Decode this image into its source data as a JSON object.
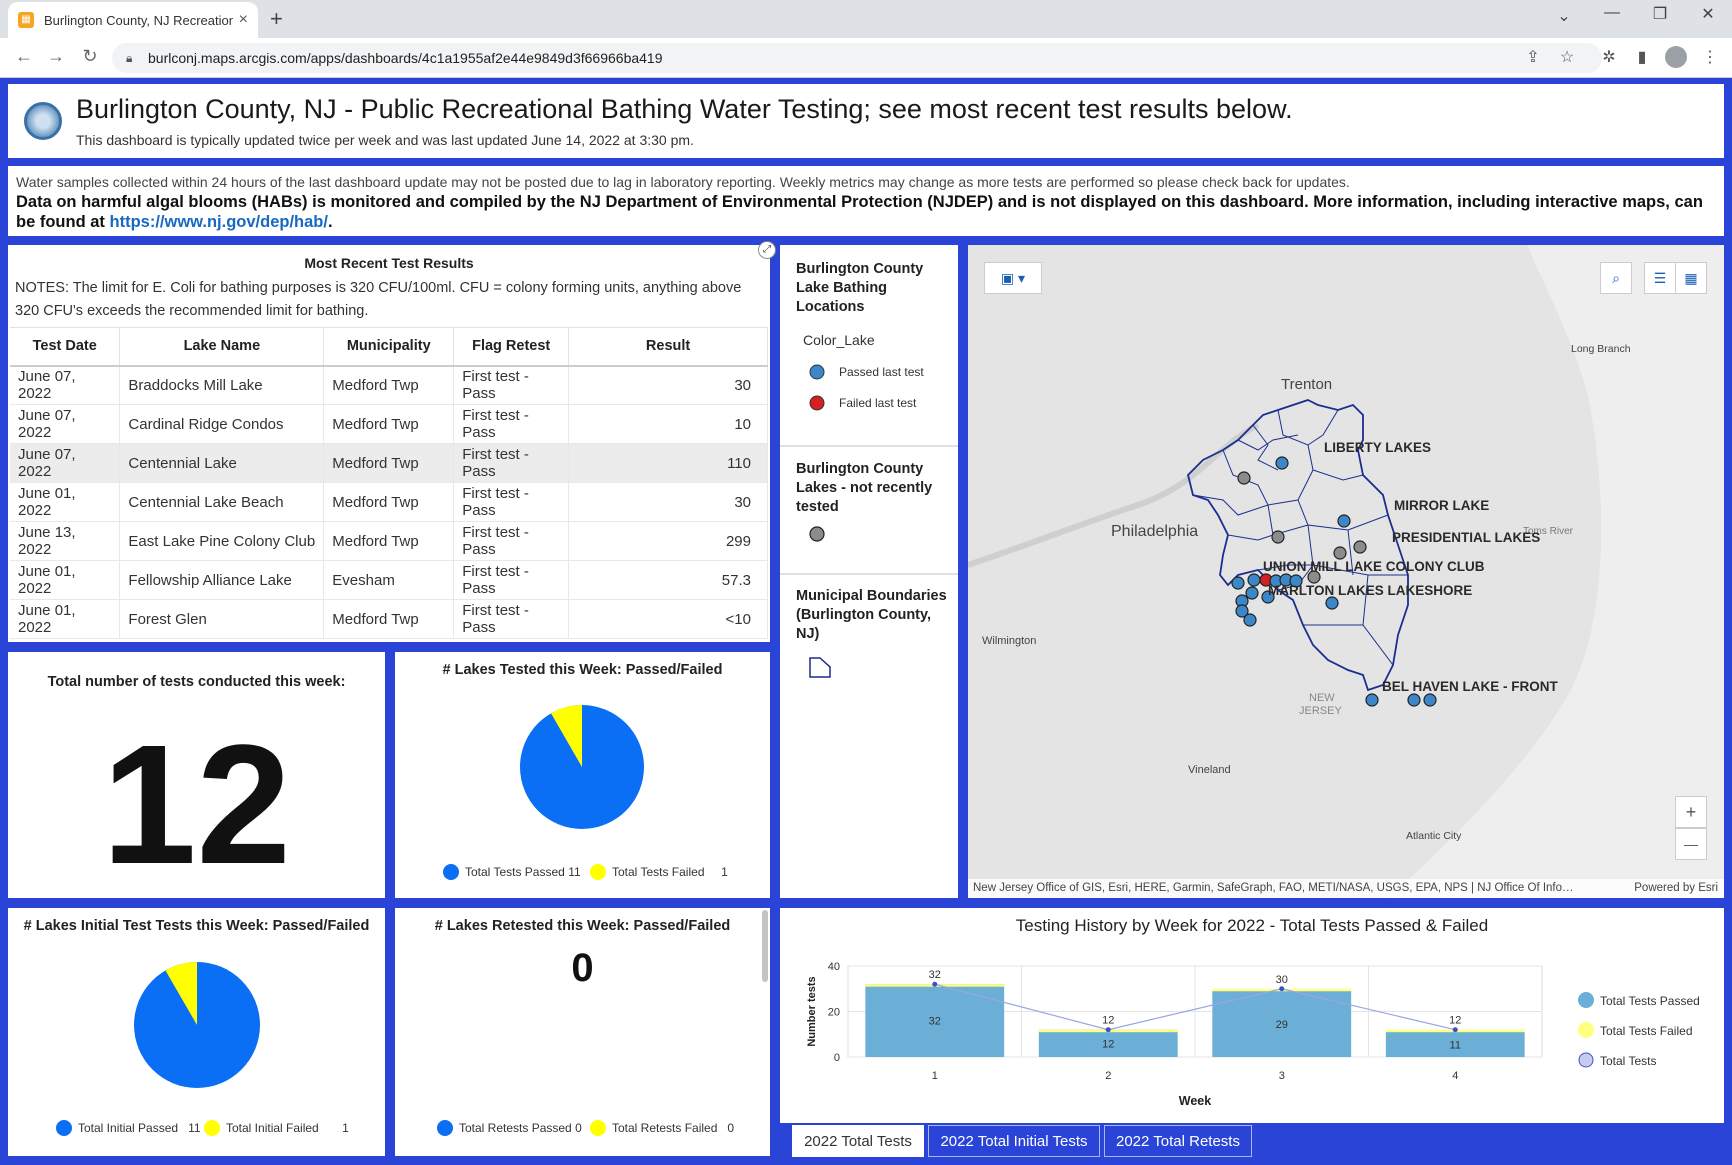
{
  "browser": {
    "tab_title": "Burlington County, NJ Recreation",
    "tab_favicon": "arcgis-dashboard-icon",
    "new_tab": "+",
    "url": "burlconj.maps.arcgis.com/apps/dashboards/4c1a1955af2e44e9849d3f66966ba419",
    "win_min": "—",
    "win_max": "❐",
    "win_close": "✕",
    "tab_search": "⌄"
  },
  "header": {
    "title": "Burlington County, NJ - Public Recreational Bathing Water Testing; see most recent test results below.",
    "subtitle": "This dashboard is typically updated twice per week and was last updated June 14, 2022 at 3:30 pm."
  },
  "notice": {
    "line1": "Water samples collected within 24 hours of the last dashboard update may not be posted due to lag in laboratory reporting. Weekly metrics may change as more tests are performed so please check back for updates.",
    "line2": "Data on harmful algal blooms (HABs) is monitored and compiled by the NJ Department of Environmental Protection (NJDEP) and is not displayed on this dashboard. More information, including interactive maps, can be found at ",
    "link": "https://www.nj.gov/dep/hab/",
    "period": "."
  },
  "table": {
    "title": "Most Recent Test Results",
    "notes": "NOTES: The limit for E. Coli for bathing purposes is 320 CFU/100ml. CFU = colony forming units, anything above 320 CFU's exceeds the recommended limit for bathing.",
    "columns": [
      "Test Date",
      "Lake Name",
      "Municipality",
      "Flag Retest",
      "Result"
    ],
    "rows": [
      [
        "June 07, 2022",
        "Braddocks Mill Lake",
        "Medford Twp",
        "First test - Pass",
        "30"
      ],
      [
        "June 07, 2022",
        "Cardinal Ridge Condos",
        "Medford Twp",
        "First test - Pass",
        "10"
      ],
      [
        "June 07, 2022",
        "Centennial Lake",
        "Medford Twp",
        "First test - Pass",
        "110"
      ],
      [
        "June 01, 2022",
        "Centennial Lake Beach",
        "Medford Twp",
        "First test - Pass",
        "30"
      ],
      [
        "June 13, 2022",
        "East Lake Pine Colony Club",
        "Medford Twp",
        "First test - Pass",
        "299"
      ],
      [
        "June 01, 2022",
        "Fellowship Alliance Lake",
        "Evesham",
        "First test - Pass",
        "57.3"
      ],
      [
        "June 01, 2022",
        "Forest Glen",
        "Medford Twp",
        "First test - Pass",
        "<10"
      ]
    ]
  },
  "indicator": {
    "title": "Total number of tests conducted this week:",
    "value": "12"
  },
  "pie_lakes": {
    "title": "# Lakes Tested this Week: Passed/Failed",
    "legend": [
      {
        "label": "Total Tests Passed",
        "value": "11",
        "color": "#0a6ff5"
      },
      {
        "label": "Total Tests Failed",
        "value": "1",
        "color": "#ffff00"
      }
    ]
  },
  "pie_initial": {
    "title": "# Lakes Initial Test Tests this Week: Passed/Failed",
    "legend": [
      {
        "label": "Total Initial Passed",
        "value": "11",
        "color": "#0a6ff5"
      },
      {
        "label": "Total Initial Failed",
        "value": "1",
        "color": "#ffff00"
      }
    ]
  },
  "pie_retest": {
    "title": "# Lakes Retested this Week: Passed/Failed",
    "value": "0",
    "legend": [
      {
        "label": "Total Retests Passed",
        "value": "0",
        "color": "#0a6ff5"
      },
      {
        "label": "Total Retests Failed",
        "value": "0",
        "color": "#ffff00"
      }
    ]
  },
  "legend": {
    "layer1_title": "Burlington County Lake Bathing Locations",
    "layer1_field": "Color_Lake",
    "passed_label": "Passed last test",
    "failed_label": "Failed last test",
    "layer2_title": "Burlington County Lakes - not recently tested",
    "layer3_title": "Municipal Boundaries (Burlington County, NJ)"
  },
  "map": {
    "labels": {
      "trenton": "Trenton",
      "philadelphia": "Philadelphia",
      "wilmington": "Wilmington",
      "vineland": "Vineland",
      "atlantic_city": "Atlantic City",
      "long_branch": "Long Branch",
      "toms_river": "Toms River",
      "new": "NEW",
      "jersey": "JERSEY",
      "liberty_lakes": "LIBERTY LAKES",
      "mirror_lake": "MIRROR LAKE",
      "presidential_lakes": "PRESIDENTIAL LAKES",
      "union_mill": "UNION MILL LAKE COLONY CLUB",
      "marlton": "MARLTON LAKES LAKESHORE",
      "bel_haven": "BEL HAVEN LAKE - FRONT"
    },
    "attribution": "New Jersey Office of GIS, Esri, HERE, Garmin, SafeGraph, FAO, METI/NASA, USGS, EPA, NPS | NJ Office Of Info…",
    "powered": "Powered by Esri",
    "zoom_in": "+",
    "zoom_out": "—"
  },
  "bar_chart": {
    "title": "Testing History by Week for 2022 - Total Tests Passed & Failed",
    "legend": {
      "passed": "Total Tests Passed",
      "failed": "Total Tests Failed",
      "total": "Total Tests"
    }
  },
  "tabs": [
    "2022 Total Tests",
    "2022 Total Initial Tests",
    "2022 Total Retests"
  ],
  "chart_data": [
    {
      "type": "pie",
      "title": "# Lakes Tested this Week: Passed/Failed",
      "categories": [
        "Total Tests Passed",
        "Total Tests Failed"
      ],
      "values": [
        11,
        1
      ]
    },
    {
      "type": "pie",
      "title": "# Lakes Initial Test Tests this Week: Passed/Failed",
      "categories": [
        "Total Initial Passed",
        "Total Initial Failed"
      ],
      "values": [
        11,
        1
      ]
    },
    {
      "type": "bar",
      "title": "Testing History by Week for 2022 - Total Tests Passed & Failed",
      "categories": [
        "1",
        "2",
        "3",
        "4"
      ],
      "xlabel": "Week",
      "ylabel": "Number tests",
      "ylim": [
        0,
        40
      ],
      "yticks": [
        "0",
        "20",
        "40"
      ],
      "series": [
        {
          "name": "Total Tests Passed",
          "values": [
            32,
            12,
            29,
            11
          ],
          "color": "#6baed6"
        },
        {
          "name": "Total Tests Failed",
          "values": [
            0,
            0,
            1,
            1
          ],
          "color": "#ffff80"
        },
        {
          "name": "Total Tests",
          "values": [
            32,
            12,
            30,
            12
          ],
          "color": "#4050c8"
        }
      ]
    }
  ]
}
